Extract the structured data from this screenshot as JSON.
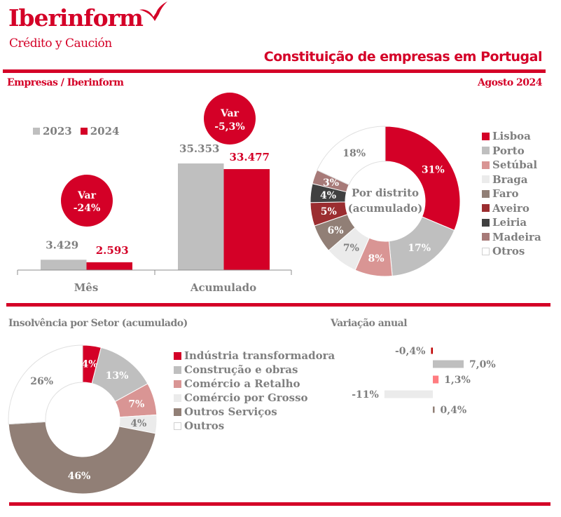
{
  "header": {
    "brand": "Iberinform",
    "brand_sub": "Crédito y Caución",
    "title": "Constituição de empresas em Portugal",
    "section_label": "Empresas / Iberinform",
    "period": "Agosto 2024",
    "accent_color": "#d40027"
  },
  "chart_data": [
    {
      "type": "bar",
      "title": "Empresas / Iberinform",
      "categories": [
        "Mês",
        "Acumulado"
      ],
      "series": [
        {
          "name": "2023",
          "color": "#bfbfbf",
          "values": [
            3429,
            35353
          ],
          "labels": [
            "3.429",
            "35.353"
          ]
        },
        {
          "name": "2024",
          "color": "#d40027",
          "values": [
            2593,
            33477
          ],
          "labels": [
            "2.593",
            "33.477"
          ]
        }
      ],
      "annotations": [
        {
          "category": "Mês",
          "title": "Var",
          "value": "-24%"
        },
        {
          "category": "Acumulado",
          "title": "Var",
          "value": "-5,3%"
        }
      ],
      "ylim": [
        0,
        36000
      ],
      "legend": "top-left"
    },
    {
      "type": "pie",
      "title": "Por distrito (acumulado)",
      "center_label": [
        "Por distrito",
        "(acumulado)"
      ],
      "categories": [
        "Lisboa",
        "Porto",
        "Setúbal",
        "Braga",
        "Faro",
        "Aveiro",
        "Leiria",
        "Madeira",
        "Otros"
      ],
      "values": [
        31,
        17,
        8,
        7,
        6,
        5,
        4,
        3,
        18
      ],
      "labels": [
        "31%",
        "17%",
        "8%",
        "7%",
        "6%",
        "5%",
        "4%",
        "3%",
        "18%"
      ],
      "colors": [
        "#d40027",
        "#bfbfbf",
        "#d99594",
        "#ebebeb",
        "#917f76",
        "#9b2d30",
        "#404040",
        "#a77a78",
        "#ffffff"
      ],
      "label_colors": [
        "#ffffff",
        "#ffffff",
        "#ffffff",
        "#7f7f7f",
        "#ffffff",
        "#ffffff",
        "#ffffff",
        "#ffffff",
        "#7f7f7f"
      ],
      "legend": "right",
      "donut": true
    },
    {
      "type": "pie",
      "title": "Insolvência por Setor (acumulado)",
      "categories": [
        "Indústria transformadora",
        "Construção e obras",
        "Comércio a Retalho",
        "Comércio por Grosso",
        "Outros Serviços",
        "Outros"
      ],
      "values": [
        4,
        13,
        7,
        4,
        46,
        26
      ],
      "labels": [
        "4%",
        "13%",
        "7%",
        "4%",
        "46%",
        "26%"
      ],
      "colors": [
        "#d40027",
        "#bfbfbf",
        "#d99594",
        "#ebebeb",
        "#917f76",
        "#ffffff"
      ],
      "label_colors": [
        "#ffffff",
        "#ffffff",
        "#ffffff",
        "#7f7f7f",
        "#ffffff",
        "#7f7f7f"
      ],
      "legend": "right",
      "donut": true
    },
    {
      "type": "bar",
      "orientation": "horizontal",
      "title": "Variação anual",
      "categories": [
        "Indústria transformadora",
        "Construção e obras",
        "Comércio a Retalho",
        "Comércio por Grosso",
        "Outros Serviços"
      ],
      "values": [
        -0.4,
        7.0,
        1.3,
        -11,
        0.4
      ],
      "labels": [
        "-0,4%",
        "7,0%",
        "1,3%",
        "-11%",
        "0,4%"
      ],
      "colors": [
        "#c00000",
        "#bfbfbf",
        "#ff7c80",
        "#ebebeb",
        "#917f76"
      ],
      "xlim": [
        -12,
        8
      ]
    }
  ]
}
